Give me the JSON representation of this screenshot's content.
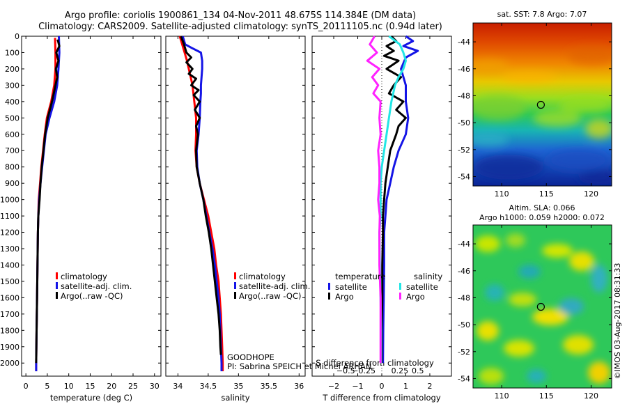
{
  "title_line1": "Argo profile: coriolis 1900861_134 04-Nov-2011 48.675S 114.384E (DM data)",
  "title_line2": "Climatology: CARS2009. Satellite-adjusted climatology: synTS_20111105.nc (0.94d later)",
  "side_text": "©IMOS 03-Aug-2017 08:31:33",
  "colors": {
    "climatology": "#ff0000",
    "satellite": "#1414e6",
    "argo": "#000000",
    "s_satellite": "#22e6e6",
    "s_argo": "#ff22ff"
  },
  "chart_data": [
    {
      "id": "temperature",
      "type": "line",
      "xlabel": "temperature (deg C)",
      "xlim": [
        -1,
        31.5
      ],
      "xticks": [
        0,
        5,
        10,
        15,
        20,
        25,
        30
      ],
      "xtick_labels": [
        "0",
        "5",
        "10",
        "15",
        "20",
        "25",
        "30"
      ],
      "ylim": [
        2080,
        0
      ],
      "yticks": [
        0,
        100,
        200,
        300,
        400,
        500,
        600,
        700,
        800,
        900,
        1000,
        1100,
        1200,
        1300,
        1400,
        1500,
        1600,
        1700,
        1800,
        1900,
        2000
      ],
      "legend": {
        "placement": "lower-right",
        "entries": [
          "climatology",
          "satellite-adj. clim.",
          "Argo(..raw -QC)"
        ]
      },
      "series": [
        {
          "key": "climatology",
          "depth": [
            10,
            100,
            200,
            300,
            400,
            500,
            600,
            700,
            800,
            900,
            1000,
            1200,
            1400,
            1600,
            1800,
            2000,
            2050
          ],
          "values": [
            6.8,
            6.9,
            6.9,
            6.6,
            5.9,
            4.9,
            4.4,
            4.0,
            3.6,
            3.3,
            3.0,
            2.8,
            2.7,
            2.6,
            2.5,
            2.4,
            2.4
          ]
        },
        {
          "key": "satellite",
          "depth": [
            0,
            100,
            200,
            300,
            400,
            500,
            600,
            700,
            800,
            900,
            1000,
            1100,
            1200,
            1400,
            1600,
            1800,
            2000,
            2050
          ],
          "values": [
            7.7,
            7.8,
            7.6,
            7.3,
            6.6,
            5.5,
            4.6,
            4.2,
            3.8,
            3.4,
            3.1,
            2.9,
            2.8,
            2.7,
            2.6,
            2.5,
            2.4,
            2.4
          ]
        },
        {
          "key": "argo",
          "depth": [
            20,
            60,
            100,
            150,
            200,
            250,
            300,
            350,
            400,
            450,
            500,
            600,
            700,
            800,
            900,
            1000,
            1100,
            1200,
            1400,
            1600,
            1800,
            2000
          ],
          "values": [
            7.4,
            7.8,
            7.1,
            7.6,
            7.0,
            7.3,
            6.9,
            6.5,
            6.1,
            5.6,
            5.1,
            4.5,
            4.1,
            3.7,
            3.4,
            3.2,
            2.9,
            2.8,
            2.7,
            2.6,
            2.5,
            2.4
          ]
        }
      ]
    },
    {
      "id": "salinity",
      "type": "line",
      "xlabel": "salinity",
      "xlim": [
        33.8,
        36.1
      ],
      "xticks": [
        34,
        34.5,
        35,
        35.5,
        36
      ],
      "xtick_labels": [
        "34",
        "34.5",
        "35",
        "35.5",
        "36"
      ],
      "ylim": [
        2080,
        0
      ],
      "legend": {
        "placement": "lower-right",
        "entries": [
          "climatology",
          "satellite-adj. clim.",
          "Argo(..raw -QC)"
        ]
      },
      "annotation": [
        "GOODHOPE",
        "PI: Sabrina SPEICH et Michel ARHAN"
      ],
      "series": [
        {
          "key": "climatology",
          "depth": [
            0,
            50,
            100,
            150,
            200,
            250,
            300,
            400,
            500,
            600,
            700,
            800,
            900,
            1000,
            1100,
            1200,
            1300,
            1400,
            1500,
            1600,
            1700,
            1800,
            1900,
            2000,
            2050
          ],
          "values": [
            34.03,
            34.07,
            34.11,
            34.15,
            34.18,
            34.21,
            34.24,
            34.27,
            34.3,
            34.3,
            34.29,
            34.31,
            34.36,
            34.43,
            34.5,
            34.55,
            34.6,
            34.63,
            34.67,
            34.69,
            34.71,
            34.72,
            34.73,
            34.74,
            34.74
          ]
        },
        {
          "key": "satellite",
          "depth": [
            0,
            50,
            70,
            100,
            150,
            200,
            250,
            300,
            350,
            400,
            500,
            600,
            700,
            800,
            900,
            1000,
            1100,
            1200,
            1300,
            1400,
            1500,
            1600,
            1700,
            1800,
            1900,
            2000,
            2050
          ],
          "values": [
            34.08,
            34.12,
            34.22,
            34.38,
            34.4,
            34.4,
            34.39,
            34.38,
            34.38,
            34.37,
            34.36,
            34.34,
            34.31,
            34.32,
            34.36,
            34.42,
            34.47,
            34.52,
            34.57,
            34.61,
            34.64,
            34.67,
            34.69,
            34.7,
            34.71,
            34.72,
            34.72
          ]
        },
        {
          "key": "argo",
          "depth": [
            0,
            50,
            100,
            130,
            160,
            200,
            230,
            260,
            300,
            330,
            360,
            400,
            450,
            500,
            550,
            600,
            700,
            800,
            900,
            1000,
            1100,
            1200,
            1300,
            1400,
            1500,
            1600,
            1700,
            1800,
            1900,
            1950
          ],
          "values": [
            34.05,
            34.1,
            34.14,
            34.22,
            34.14,
            34.24,
            34.18,
            34.3,
            34.22,
            34.34,
            34.26,
            34.36,
            34.28,
            34.36,
            34.3,
            34.33,
            34.3,
            34.31,
            34.36,
            34.42,
            34.46,
            34.51,
            34.55,
            34.58,
            34.61,
            34.64,
            34.67,
            34.69,
            34.7,
            34.71
          ]
        }
      ]
    },
    {
      "id": "difference",
      "type": "line",
      "xlabel": "T difference from climatology",
      "x2label": "S difference from climatology",
      "xlim": [
        -2.9,
        2.9
      ],
      "xticks": [
        -2,
        -1,
        0,
        1,
        2
      ],
      "xtick_labels": [
        "−2",
        "−1",
        "0",
        "1",
        "2"
      ],
      "x2ticks": [
        -1.5,
        -0.75,
        0.75,
        1.5
      ],
      "x2tick_labels": [
        "−0.5",
        "−0.25",
        "0.25",
        "0.5"
      ],
      "ylim": [
        2080,
        0
      ],
      "legend": {
        "placement": "lower",
        "groups": [
          {
            "title": "temperature",
            "entries": [
              {
                "key": "satellite",
                "label": "satellite"
              },
              {
                "key": "argo",
                "label": "Argo"
              }
            ]
          },
          {
            "title": "salinity",
            "entries": [
              {
                "key": "s_satellite",
                "label": "satellite"
              },
              {
                "key": "s_argo",
                "label": "Argo"
              }
            ]
          }
        ]
      },
      "series": [
        {
          "key": "satellite",
          "depth": [
            0,
            30,
            60,
            90,
            130,
            200,
            300,
            400,
            500,
            600,
            700,
            800,
            900,
            1000,
            1100,
            1200,
            1400,
            1600,
            1800,
            2000
          ],
          "values": [
            1.0,
            1.3,
            0.9,
            1.5,
            1.0,
            0.8,
            1.0,
            1.0,
            1.1,
            1.0,
            0.7,
            0.5,
            0.35,
            0.2,
            0.15,
            0.1,
            0.1,
            0.08,
            0.06,
            0.05
          ]
        },
        {
          "key": "argo",
          "depth": [
            0,
            30,
            60,
            90,
            120,
            150,
            200,
            250,
            300,
            350,
            400,
            450,
            500,
            550,
            600,
            700,
            800,
            900,
            1000,
            1100,
            1200,
            1400,
            1600,
            1800,
            2000
          ],
          "values": [
            0.4,
            0.6,
            0.2,
            0.5,
            0.1,
            0.7,
            0.2,
            0.8,
            0.5,
            0.3,
            0.9,
            0.6,
            1.0,
            0.7,
            0.6,
            0.35,
            0.25,
            0.15,
            0.1,
            0.05,
            0.05,
            0.02,
            0.02,
            0.0,
            0.0
          ]
        },
        {
          "key": "s_satellite",
          "depth": [
            0,
            50,
            100,
            150,
            200,
            250,
            300,
            400,
            500,
            600,
            700,
            800,
            900,
            1000,
            1100,
            1200,
            1400,
            1600,
            1800,
            2000
          ],
          "values": [
            0.3,
            0.75,
            0.9,
            1.0,
            0.9,
            0.7,
            0.55,
            0.4,
            0.3,
            0.2,
            0.1,
            0.0,
            -0.05,
            -0.05,
            -0.05,
            -0.1,
            -0.08,
            -0.05,
            -0.03,
            -0.03
          ]
        },
        {
          "key": "s_argo",
          "depth": [
            0,
            50,
            100,
            150,
            200,
            250,
            300,
            350,
            400,
            500,
            600,
            700,
            800,
            900,
            1000,
            1100,
            1200,
            1400,
            1600,
            1800,
            2000
          ],
          "values": [
            -0.3,
            -0.5,
            -0.2,
            -0.6,
            -0.1,
            -0.4,
            -0.15,
            -0.35,
            -0.05,
            -0.1,
            -0.05,
            -0.15,
            -0.1,
            -0.1,
            -0.15,
            -0.08,
            -0.1,
            -0.1,
            -0.05,
            -0.05,
            -0.05
          ]
        }
      ]
    },
    {
      "id": "sst_map",
      "type": "heatmap",
      "title": "sat. SST: 7.8 Argo: 7.07",
      "xlim": [
        106.8,
        122.3
      ],
      "ylim": [
        -54.7,
        -42.6
      ],
      "xticks": [
        110,
        115,
        120
      ],
      "xtick_labels": [
        "110",
        "115",
        "120"
      ],
      "yticks": [
        -44,
        -46,
        -48,
        -50,
        -52,
        -54
      ],
      "ytick_labels": [
        "-44",
        "-46",
        "-48",
        "-50",
        "-52",
        "-54"
      ],
      "marker": [
        114.384,
        -48.675
      ]
    },
    {
      "id": "sla_map",
      "type": "heatmap",
      "title_line1": "Altim. SLA: 0.066",
      "title_line2": "Argo h1000: 0.059 h2000: 0.072",
      "xlim": [
        106.8,
        122.3
      ],
      "ylim": [
        -54.7,
        -42.6
      ],
      "xticks": [
        110,
        115,
        120
      ],
      "xtick_labels": [
        "110",
        "115",
        "120"
      ],
      "yticks": [
        -44,
        -46,
        -48,
        -50,
        -52,
        -54
      ],
      "ytick_labels": [
        "-44",
        "-46",
        "-48",
        "-50",
        "-52",
        "-54"
      ],
      "marker": [
        114.384,
        -48.675
      ]
    }
  ]
}
